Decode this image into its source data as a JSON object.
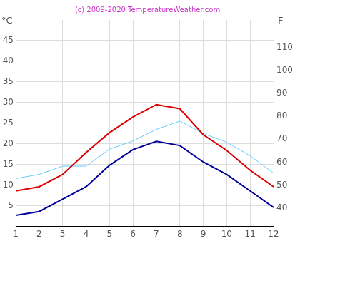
{
  "chart_data": {
    "type": "line",
    "title": "(c) 2009-2020 TemperatureWeather.com",
    "ylabel": "°C",
    "y2label": "F",
    "x": [
      1,
      2,
      3,
      4,
      5,
      6,
      7,
      8,
      9,
      10,
      11,
      12
    ],
    "xlim": [
      1,
      12
    ],
    "xticks": [
      1,
      2,
      3,
      4,
      5,
      6,
      7,
      8,
      9,
      10,
      11,
      12
    ],
    "ylim": [
      0,
      50
    ],
    "yticks": [
      5,
      10,
      15,
      20,
      25,
      30,
      35,
      40,
      45
    ],
    "y2lim": [
      32,
      122
    ],
    "y2ticks": [
      40,
      50,
      60,
      70,
      80,
      90,
      100,
      110
    ],
    "grid": true,
    "marker": "none",
    "series": [
      {
        "color": "#dd0000",
        "values": [
          8.6,
          9.6,
          12.6,
          17.9,
          22.7,
          26.5,
          29.5,
          28.5,
          22.2,
          18.4,
          13.6,
          9.6
        ]
      },
      {
        "color": "#000099",
        "values": [
          2.7,
          3.6,
          6.6,
          9.6,
          14.8,
          18.6,
          20.6,
          19.6,
          15.6,
          12.6,
          8.6,
          4.6
        ]
      },
      {
        "color": "#66ccff",
        "values": [
          11.6,
          12.6,
          14.6,
          14.6,
          18.7,
          20.7,
          23.5,
          25.5,
          22.5,
          20.4,
          17.1,
          12.9
        ]
      }
    ]
  }
}
